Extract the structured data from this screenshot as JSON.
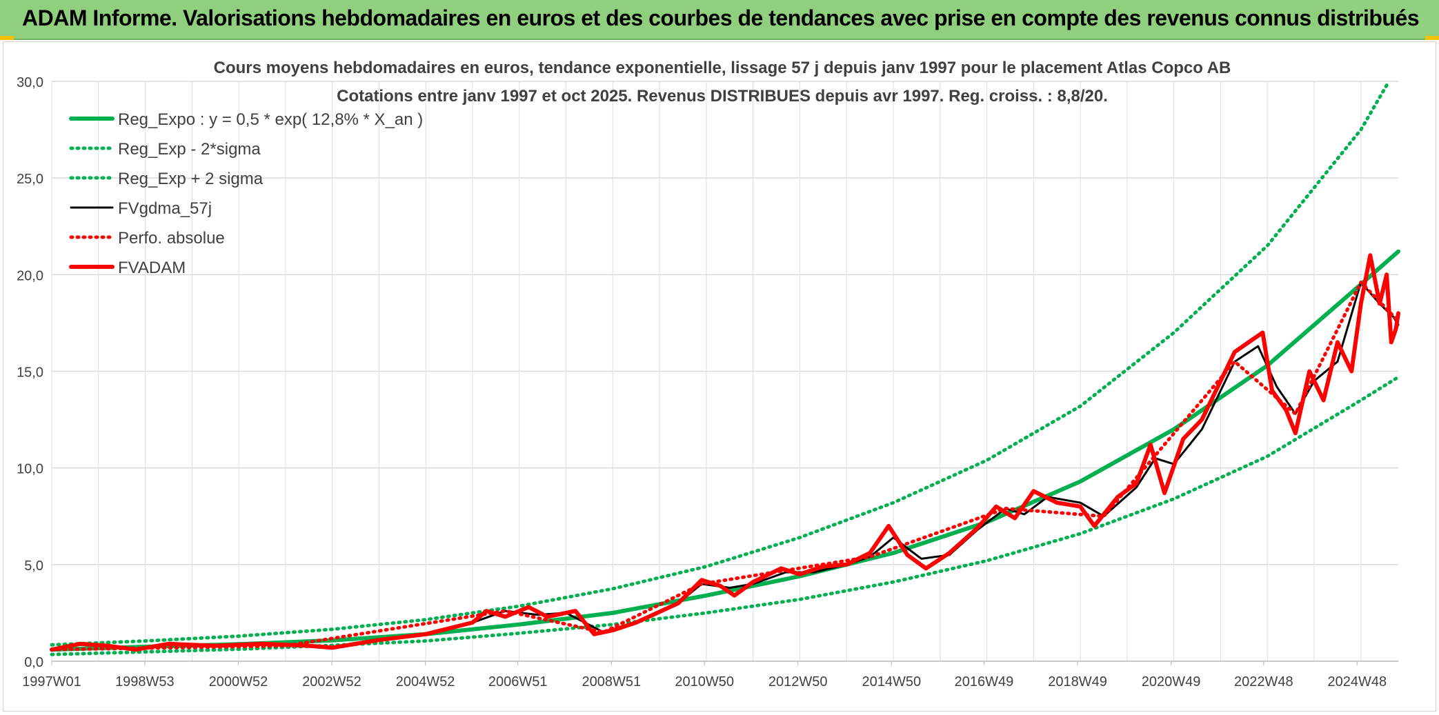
{
  "banner": {
    "title": "ADAM Informe. Valorisations hebdomadaires en euros et des courbes de tendances avec prise en compte des revenus connus distribués"
  },
  "colors": {
    "banner": "#8fcf7e",
    "reg_expo": "#00b050",
    "fvgdma": "#000000",
    "fvadam": "#ff0000",
    "grid": "#d9d9d9"
  },
  "chart_data": {
    "type": "line",
    "title": "Cours moyens hebdomadaires en euros, tendance exponentielle, lissage 57 j depuis janv 1997 pour le placement Atlas Copco AB",
    "subtitle": "Cotations entre janv 1997 et oct 2025. Revenus DISTRIBUES depuis avr 1997. Reg. croiss. : 8,8/20.",
    "xlabel": "",
    "ylabel": "",
    "ylim": [
      0,
      30
    ],
    "xlim": [
      1997.0,
      2025.8
    ],
    "yticks": [
      "0,0",
      "5,0",
      "10,0",
      "15,0",
      "20,0",
      "25,0",
      "30,0"
    ],
    "xticks": [
      {
        "label": "1997W01",
        "x": 1997.0
      },
      {
        "label": "1998W53",
        "x": 1998.99
      },
      {
        "label": "2000W52",
        "x": 2000.99
      },
      {
        "label": "2002W52",
        "x": 2002.99
      },
      {
        "label": "2004W52",
        "x": 2004.99
      },
      {
        "label": "2006W51",
        "x": 2006.97
      },
      {
        "label": "2008W51",
        "x": 2008.97
      },
      {
        "label": "2010W50",
        "x": 2010.96
      },
      {
        "label": "2012W50",
        "x": 2012.96
      },
      {
        "label": "2014W50",
        "x": 2014.96
      },
      {
        "label": "2016W49",
        "x": 2016.94
      },
      {
        "label": "2018W49",
        "x": 2018.94
      },
      {
        "label": "2020W49",
        "x": 2020.94
      },
      {
        "label": "2022W48",
        "x": 2022.92
      },
      {
        "label": "2024W48",
        "x": 2024.92
      }
    ],
    "grid": true,
    "legend_position": "top-left",
    "series": [
      {
        "name": "Reg_Expo : y = 0,5 * exp( 12,8% *  X_an )",
        "style": "solid-thick",
        "color": "#00b050",
        "points": [
          [
            1997,
            0.6
          ],
          [
            1999,
            0.75
          ],
          [
            2001,
            0.88
          ],
          [
            2003,
            1.08
          ],
          [
            2005,
            1.4
          ],
          [
            2007,
            1.9
          ],
          [
            2009,
            2.5
          ],
          [
            2011,
            3.4
          ],
          [
            2013,
            4.4
          ],
          [
            2015,
            5.6
          ],
          [
            2017,
            7.2
          ],
          [
            2019,
            9.3
          ],
          [
            2021,
            12.0
          ],
          [
            2023,
            15.3
          ],
          [
            2025,
            19.5
          ],
          [
            2025.8,
            21.2
          ]
        ]
      },
      {
        "name": "Reg_Exp - 2*sigma",
        "style": "dotted",
        "color": "#00b050",
        "points": [
          [
            1997,
            0.35
          ],
          [
            1999,
            0.48
          ],
          [
            2001,
            0.62
          ],
          [
            2003,
            0.82
          ],
          [
            2005,
            1.05
          ],
          [
            2007,
            1.45
          ],
          [
            2009,
            1.9
          ],
          [
            2011,
            2.5
          ],
          [
            2013,
            3.2
          ],
          [
            2015,
            4.1
          ],
          [
            2017,
            5.2
          ],
          [
            2019,
            6.6
          ],
          [
            2021,
            8.4
          ],
          [
            2023,
            10.6
          ],
          [
            2025,
            13.5
          ],
          [
            2025.8,
            14.7
          ]
        ]
      },
      {
        "name": "Reg_Exp + 2 sigma",
        "style": "dotted",
        "color": "#00b050",
        "points": [
          [
            1997,
            0.85
          ],
          [
            1999,
            1.05
          ],
          [
            2001,
            1.3
          ],
          [
            2003,
            1.65
          ],
          [
            2005,
            2.15
          ],
          [
            2007,
            2.85
          ],
          [
            2009,
            3.75
          ],
          [
            2011,
            4.9
          ],
          [
            2013,
            6.4
          ],
          [
            2015,
            8.2
          ],
          [
            2017,
            10.4
          ],
          [
            2019,
            13.2
          ],
          [
            2021,
            17.0
          ],
          [
            2023,
            21.5
          ],
          [
            2025,
            27.5
          ],
          [
            2025.6,
            30.0
          ]
        ]
      },
      {
        "name": "FVgdma_57j",
        "style": "solid-thin",
        "color": "#000000",
        "points": [
          [
            1997,
            0.6
          ],
          [
            1997.6,
            0.85
          ],
          [
            1998.2,
            0.78
          ],
          [
            1998.8,
            0.65
          ],
          [
            1999.5,
            0.85
          ],
          [
            2000.5,
            0.8
          ],
          [
            2001.5,
            0.85
          ],
          [
            2002.5,
            0.8
          ],
          [
            2003.0,
            0.75
          ],
          [
            2004,
            1.1
          ],
          [
            2005,
            1.4
          ],
          [
            2006,
            2.0
          ],
          [
            2006.7,
            2.6
          ],
          [
            2007.4,
            2.4
          ],
          [
            2008,
            2.5
          ],
          [
            2008.8,
            1.5
          ],
          [
            2009.5,
            2.0
          ],
          [
            2010.4,
            3.0
          ],
          [
            2010.9,
            4.0
          ],
          [
            2011.5,
            3.8
          ],
          [
            2012,
            4.0
          ],
          [
            2012.7,
            4.6
          ],
          [
            2013.3,
            4.6
          ],
          [
            2014,
            5.0
          ],
          [
            2014.5,
            5.4
          ],
          [
            2015.0,
            6.4
          ],
          [
            2015.6,
            5.3
          ],
          [
            2016.2,
            5.5
          ],
          [
            2016.8,
            6.8
          ],
          [
            2017.4,
            7.9
          ],
          [
            2017.8,
            7.6
          ],
          [
            2018.3,
            8.5
          ],
          [
            2019.0,
            8.2
          ],
          [
            2019.5,
            7.5
          ],
          [
            2020.2,
            9.0
          ],
          [
            2020.6,
            10.5
          ],
          [
            2021.0,
            10.2
          ],
          [
            2021.6,
            12.0
          ],
          [
            2022.3,
            15.5
          ],
          [
            2022.8,
            16.3
          ],
          [
            2023.2,
            14.2
          ],
          [
            2023.6,
            12.8
          ],
          [
            2024.0,
            14.5
          ],
          [
            2024.5,
            15.5
          ],
          [
            2025.0,
            19.6
          ],
          [
            2025.4,
            18.5
          ],
          [
            2025.7,
            17.8
          ],
          [
            2025.8,
            17.4
          ]
        ]
      },
      {
        "name": "Perfo. absolue",
        "style": "dotted",
        "color": "#ff0000",
        "points": [
          [
            1997,
            0.6
          ],
          [
            2002,
            0.8
          ],
          [
            2006.7,
            2.6
          ],
          [
            2008.8,
            1.5
          ],
          [
            2010.9,
            4.0
          ],
          [
            2014.5,
            5.4
          ],
          [
            2017.4,
            7.9
          ],
          [
            2019.5,
            7.5
          ],
          [
            2022.3,
            15.5
          ],
          [
            2023.6,
            12.8
          ],
          [
            2025.0,
            19.6
          ],
          [
            2025.8,
            17.6
          ]
        ]
      },
      {
        "name": "FVADAM",
        "style": "solid-thick",
        "color": "#ff0000",
        "points": [
          [
            1997,
            0.6
          ],
          [
            1997.6,
            0.9
          ],
          [
            1998.2,
            0.8
          ],
          [
            1998.8,
            0.6
          ],
          [
            1999.5,
            0.9
          ],
          [
            2000.5,
            0.8
          ],
          [
            2001.5,
            0.9
          ],
          [
            2002.5,
            0.8
          ],
          [
            2003.0,
            0.7
          ],
          [
            2004,
            1.1
          ],
          [
            2005,
            1.4
          ],
          [
            2006,
            2.0
          ],
          [
            2006.3,
            2.6
          ],
          [
            2006.7,
            2.3
          ],
          [
            2007.2,
            2.8
          ],
          [
            2007.6,
            2.3
          ],
          [
            2008.2,
            2.6
          ],
          [
            2008.6,
            1.4
          ],
          [
            2009.0,
            1.6
          ],
          [
            2009.5,
            2.0
          ],
          [
            2010.4,
            3.0
          ],
          [
            2010.9,
            4.2
          ],
          [
            2011.3,
            3.9
          ],
          [
            2011.6,
            3.4
          ],
          [
            2012,
            4.1
          ],
          [
            2012.6,
            4.8
          ],
          [
            2013.0,
            4.5
          ],
          [
            2013.5,
            4.9
          ],
          [
            2014,
            5.0
          ],
          [
            2014.5,
            5.6
          ],
          [
            2014.9,
            7.0
          ],
          [
            2015.3,
            5.5
          ],
          [
            2015.7,
            4.8
          ],
          [
            2016.2,
            5.6
          ],
          [
            2016.8,
            6.9
          ],
          [
            2017.2,
            8.0
          ],
          [
            2017.6,
            7.4
          ],
          [
            2018.0,
            8.8
          ],
          [
            2018.5,
            8.2
          ],
          [
            2019.0,
            8.0
          ],
          [
            2019.3,
            7.0
          ],
          [
            2019.8,
            8.5
          ],
          [
            2020.2,
            9.2
          ],
          [
            2020.5,
            11.2
          ],
          [
            2020.8,
            8.7
          ],
          [
            2021.2,
            11.5
          ],
          [
            2021.6,
            12.5
          ],
          [
            2022.0,
            14.5
          ],
          [
            2022.3,
            16.0
          ],
          [
            2022.6,
            16.5
          ],
          [
            2022.9,
            17.0
          ],
          [
            2023.1,
            14.0
          ],
          [
            2023.4,
            13.0
          ],
          [
            2023.6,
            11.8
          ],
          [
            2023.9,
            15.0
          ],
          [
            2024.2,
            13.5
          ],
          [
            2024.5,
            16.5
          ],
          [
            2024.8,
            15.0
          ],
          [
            2025.0,
            18.5
          ],
          [
            2025.2,
            21.0
          ],
          [
            2025.4,
            18.5
          ],
          [
            2025.55,
            20.0
          ],
          [
            2025.65,
            16.5
          ],
          [
            2025.75,
            17.2
          ],
          [
            2025.8,
            18.0
          ]
        ]
      }
    ]
  }
}
